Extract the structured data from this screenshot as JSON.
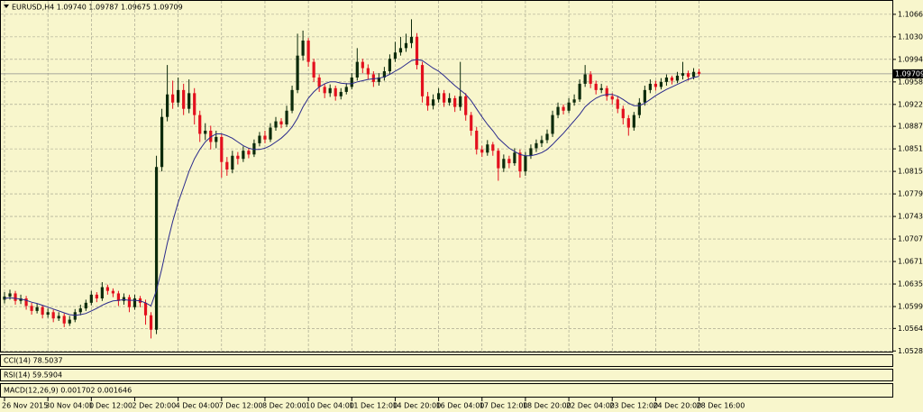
{
  "chart_data": {
    "type": "candlestick",
    "title": "EURUSD,H4  1.09740 1.09787 1.09675 1.09709",
    "categories": [
      "26 Nov 2015",
      null,
      null,
      null,
      null,
      null,
      null,
      null,
      "30 Nov 04:00",
      null,
      null,
      null,
      null,
      null,
      null,
      null,
      "1 Dec 12:00",
      null,
      null,
      null,
      null,
      null,
      null,
      null,
      "2 Dec 20:00",
      null,
      null,
      null,
      null,
      null,
      null,
      null,
      "4 Dec 04:00",
      null,
      null,
      null,
      null,
      null,
      null,
      null,
      "7 Dec 12:00",
      null,
      null,
      null,
      null,
      null,
      null,
      null,
      "8 Dec 20:00",
      null,
      null,
      null,
      null,
      null,
      null,
      null,
      "10 Dec 04:00",
      null,
      null,
      null,
      null,
      null,
      null,
      null,
      "11 Dec 12:00",
      null,
      null,
      null,
      null,
      null,
      null,
      null,
      "14 Dec 20:00",
      null,
      null,
      null,
      null,
      null,
      null,
      null,
      "16 Dec 04:00",
      null,
      null,
      null,
      null,
      null,
      null,
      null,
      "17 Dec 12:00",
      null,
      null,
      null,
      null,
      null,
      null,
      null,
      "18 Dec 20:00",
      null,
      null,
      null,
      null,
      null,
      null,
      null,
      "22 Dec 04:00",
      null,
      null,
      null,
      null,
      null,
      null,
      null,
      "23 Dec 12:00",
      null,
      null,
      null,
      null,
      null,
      null,
      null,
      "24 Dec 20:00",
      null,
      null,
      null,
      null,
      null,
      null,
      null,
      "28 Dec 16:00"
    ],
    "open": [
      1.061,
      1.0615,
      1.062,
      1.0608,
      1.0612,
      1.06,
      1.0592,
      1.0598,
      1.0586,
      1.059,
      1.058,
      1.0584,
      1.0572,
      1.0578,
      1.059,
      1.0596,
      1.0605,
      1.0618,
      1.0612,
      1.063,
      1.0624,
      1.062,
      1.0608,
      1.0614,
      1.0598,
      1.0612,
      1.0605,
      1.0585,
      1.0562,
      1.0822,
      1.0902,
      1.0938,
      1.0925,
      1.0945,
      1.0915,
      1.094,
      1.0905,
      1.0875,
      1.088,
      1.0862,
      1.087,
      1.083,
      1.0818,
      1.084,
      1.0835,
      1.0848,
      1.0842,
      1.086,
      1.0872,
      1.0866,
      1.0885,
      1.0895,
      1.089,
      1.0912,
      1.0945,
      1.1,
      1.1024,
      1.099,
      1.0965,
      1.095,
      1.094,
      1.0948,
      1.0935,
      1.0942,
      1.095,
      1.0965,
      1.099,
      1.098,
      1.097,
      1.0958,
      1.0965,
      1.0975,
      1.0995,
      1.1005,
      1.1012,
      1.102,
      1.103,
      1.0985,
      1.0935,
      1.092,
      1.093,
      1.094,
      1.0925,
      1.0932,
      1.0918,
      1.0935,
      1.0905,
      1.088,
      1.085,
      1.0845,
      1.0858,
      1.0848,
      1.082,
      1.0835,
      1.0828,
      1.0845,
      1.0815,
      1.084,
      1.0852,
      1.086,
      1.0865,
      1.0875,
      1.0905,
      1.0918,
      1.0912,
      1.0925,
      1.093,
      1.0955,
      1.097,
      1.0955,
      1.0945,
      1.0948,
      1.0935,
      1.093,
      1.0915,
      1.09,
      1.0885,
      1.0905,
      1.0925,
      1.0945,
      1.0955,
      1.095,
      1.0958,
      1.0965,
      1.096,
      1.0968,
      1.0972,
      1.0966,
      1.0974
    ],
    "high": [
      1.0622,
      1.0626,
      1.0624,
      1.0618,
      1.0616,
      1.0605,
      1.0604,
      1.0601,
      1.0596,
      1.0594,
      1.059,
      1.0588,
      1.0584,
      1.0595,
      1.0602,
      1.061,
      1.0624,
      1.0622,
      1.0638,
      1.0634,
      1.0628,
      1.0624,
      1.062,
      1.0618,
      1.0618,
      1.0616,
      1.061,
      1.059,
      1.084,
      1.0915,
      1.0985,
      1.096,
      1.0965,
      1.0955,
      1.0962,
      1.0948,
      1.0912,
      1.0892,
      1.0888,
      1.088,
      1.0875,
      1.0838,
      1.0848,
      1.0846,
      1.0855,
      1.0852,
      1.0866,
      1.0878,
      1.088,
      1.0892,
      1.0902,
      1.09,
      1.092,
      1.0952,
      1.1035,
      1.104,
      1.1028,
      1.0995,
      1.097,
      1.0955,
      1.0954,
      1.0952,
      1.0948,
      1.0956,
      1.0972,
      1.1012,
      1.0995,
      1.0986,
      1.0975,
      1.0972,
      1.0982,
      1.1002,
      1.1022,
      1.103,
      1.1035,
      1.1058,
      1.1036,
      1.099,
      1.0942,
      1.0938,
      1.0948,
      1.0945,
      1.094,
      1.0936,
      1.099,
      1.094,
      1.091,
      1.0886,
      1.0856,
      1.0865,
      1.0862,
      1.0852,
      1.0842,
      1.084,
      1.0852,
      1.085,
      1.0846,
      1.0858,
      1.0866,
      1.0872,
      1.0882,
      1.0912,
      1.0925,
      1.0922,
      1.0932,
      1.0938,
      1.0962,
      1.0985,
      1.0975,
      1.096,
      1.0955,
      1.0952,
      1.094,
      1.0935,
      1.092,
      1.0905,
      1.091,
      1.0932,
      1.0952,
      1.0962,
      1.096,
      1.0964,
      1.097,
      1.0968,
      1.0974,
      1.099,
      1.0976,
      1.098,
      1.09787
    ],
    "low": [
      1.0604,
      1.061,
      1.0602,
      1.0603,
      1.0594,
      1.0586,
      1.0588,
      1.058,
      1.0581,
      1.0574,
      1.0576,
      1.0566,
      1.0568,
      1.0574,
      1.0585,
      1.0592,
      1.0601,
      1.0606,
      1.0608,
      1.0618,
      1.0614,
      1.06,
      1.0602,
      1.059,
      1.0594,
      1.0598,
      1.057,
      1.0548,
      1.0555,
      1.0815,
      1.0895,
      1.0915,
      1.0918,
      1.0905,
      1.0908,
      1.089,
      1.0862,
      1.0865,
      1.085,
      1.0852,
      1.0805,
      1.0808,
      1.0812,
      1.0826,
      1.083,
      1.0836,
      1.0838,
      1.0855,
      1.086,
      1.0862,
      1.088,
      1.0884,
      1.0886,
      1.0908,
      1.094,
      1.0992,
      1.0982,
      1.0958,
      1.0942,
      1.0932,
      1.0934,
      1.0928,
      1.093,
      1.0938,
      1.0946,
      1.096,
      1.0972,
      1.0962,
      1.095,
      1.0952,
      1.096,
      1.097,
      1.099,
      1.1,
      1.1006,
      1.1012,
      1.0978,
      1.0925,
      1.0912,
      1.0914,
      1.0925,
      1.0918,
      1.092,
      1.091,
      1.0912,
      1.0896,
      1.0872,
      1.0842,
      1.0838,
      1.084,
      1.084,
      1.08,
      1.0814,
      1.082,
      1.0824,
      1.0805,
      1.0808,
      1.0835,
      1.0846,
      1.0854,
      1.086,
      1.087,
      1.09,
      1.0906,
      1.0908,
      1.092,
      1.0926,
      1.095,
      1.0948,
      1.0938,
      1.094,
      1.0928,
      1.0922,
      1.0908,
      1.089,
      1.0872,
      1.088,
      1.09,
      1.092,
      1.094,
      1.0944,
      1.0946,
      1.0952,
      1.0954,
      1.0956,
      1.0962,
      1.096,
      1.0962,
      1.09675
    ],
    "close": [
      1.0615,
      1.062,
      1.0608,
      1.0612,
      1.06,
      1.0592,
      1.0598,
      1.0586,
      1.059,
      1.058,
      1.0584,
      1.0572,
      1.0578,
      1.059,
      1.0596,
      1.0605,
      1.0618,
      1.0612,
      1.063,
      1.0624,
      1.062,
      1.0608,
      1.0614,
      1.0598,
      1.0612,
      1.0605,
      1.0585,
      1.0562,
      1.0822,
      1.0902,
      1.0938,
      1.0925,
      1.0945,
      1.0915,
      1.094,
      1.0905,
      1.0875,
      1.088,
      1.0862,
      1.087,
      1.083,
      1.0818,
      1.084,
      1.0835,
      1.0848,
      1.0842,
      1.086,
      1.0872,
      1.0866,
      1.0885,
      1.0895,
      1.089,
      1.0912,
      1.0945,
      1.1,
      1.1024,
      1.099,
      1.0965,
      1.095,
      1.094,
      1.0948,
      1.0935,
      1.0942,
      1.095,
      1.0965,
      1.099,
      1.098,
      1.097,
      1.0958,
      1.0965,
      1.0975,
      1.0995,
      1.1005,
      1.1012,
      1.102,
      1.103,
      1.0985,
      1.0935,
      1.092,
      1.093,
      1.094,
      1.0925,
      1.0932,
      1.0918,
      1.0935,
      1.0905,
      1.088,
      1.085,
      1.0845,
      1.0858,
      1.0848,
      1.082,
      1.0835,
      1.0828,
      1.0845,
      1.0815,
      1.084,
      1.0852,
      1.086,
      1.0865,
      1.0875,
      1.0905,
      1.0918,
      1.0912,
      1.0925,
      1.093,
      1.0955,
      1.097,
      1.0955,
      1.0945,
      1.0948,
      1.0935,
      1.093,
      1.0915,
      1.09,
      1.0885,
      1.0905,
      1.0925,
      1.0945,
      1.0955,
      1.095,
      1.0958,
      1.0965,
      1.096,
      1.0968,
      1.0972,
      1.0966,
      1.0974,
      1.09709
    ],
    "ma": {
      "color": "#2a2a8c",
      "values": [
        1.0612,
        1.0613,
        1.0612,
        1.0611,
        1.0609,
        1.0606,
        1.0604,
        1.0601,
        1.0598,
        1.0595,
        1.0592,
        1.0589,
        1.0586,
        1.0585,
        1.0586,
        1.0588,
        1.0592,
        1.0596,
        1.0601,
        1.0605,
        1.0608,
        1.0609,
        1.061,
        1.0609,
        1.0609,
        1.0608,
        1.0605,
        1.06,
        1.0625,
        1.066,
        1.07,
        1.0735,
        1.0765,
        1.079,
        1.0815,
        1.0835,
        1.085,
        1.0862,
        1.087,
        1.0875,
        1.0875,
        1.0872,
        1.0868,
        1.0862,
        1.0856,
        1.0852,
        1.085,
        1.085,
        1.0852,
        1.0856,
        1.0862,
        1.0868,
        1.0876,
        1.0886,
        1.09,
        1.0918,
        1.0932,
        1.0942,
        1.095,
        1.0955,
        1.0958,
        1.0958,
        1.0956,
        1.0955,
        1.0955,
        1.0958,
        1.096,
        1.0962,
        1.0963,
        1.0964,
        1.0966,
        1.097,
        1.0975,
        1.098,
        1.0986,
        1.0992,
        1.0994,
        1.0992,
        1.0986,
        1.098,
        1.0975,
        1.0968,
        1.096,
        1.0952,
        1.0945,
        1.0938,
        1.0928,
        1.0915,
        1.0902,
        1.089,
        1.088,
        1.0868,
        1.086,
        1.0852,
        1.0847,
        1.0842,
        1.084,
        1.084,
        1.0842,
        1.0845,
        1.085,
        1.0858,
        1.0867,
        1.0876,
        1.0886,
        1.0896,
        1.0906,
        1.0918,
        1.0926,
        1.0932,
        1.0936,
        1.0938,
        1.0938,
        1.0935,
        1.093,
        1.0924,
        1.092,
        1.092,
        1.0924,
        1.093,
        1.0936,
        1.0941,
        1.0946,
        1.095,
        1.0954,
        1.0958,
        1.0962,
        1.0965,
        1.0967
      ]
    },
    "up_color": "#0b2a0b",
    "down_color": "#e3101e",
    "ylim": [
      1.0527,
      1.1086
    ],
    "yticks": [
      {
        "value": 1.1066,
        "label": "1.10660"
      },
      {
        "value": 1.103,
        "label": "1.10300"
      },
      {
        "value": 1.0994,
        "label": "1.09940"
      },
      {
        "value": 1.0958,
        "label": "1.09580"
      },
      {
        "value": 1.0922,
        "label": "1.09220"
      },
      {
        "value": 1.0887,
        "label": "1.08870"
      },
      {
        "value": 1.0851,
        "label": "1.08510"
      },
      {
        "value": 1.0815,
        "label": "1.08150"
      },
      {
        "value": 1.0779,
        "label": "1.07790"
      },
      {
        "value": 1.0743,
        "label": "1.07430"
      },
      {
        "value": 1.0707,
        "label": "1.07070"
      },
      {
        "value": 1.0671,
        "label": "1.06710"
      },
      {
        "value": 1.0635,
        "label": "1.06350"
      },
      {
        "value": 1.0599,
        "label": "1.05990"
      },
      {
        "value": 1.0564,
        "label": "1.05640"
      },
      {
        "value": 1.0528,
        "label": "1.05280"
      }
    ],
    "last_price": {
      "value": 1.09709,
      "label": "1.09709"
    },
    "grid": true,
    "indicators": [
      {
        "label": "CCI(14) 78.5037"
      },
      {
        "label": "RSI(14) 59.5904"
      },
      {
        "label": "MACD(12,26,9) 0.001702 0.001646"
      }
    ]
  }
}
